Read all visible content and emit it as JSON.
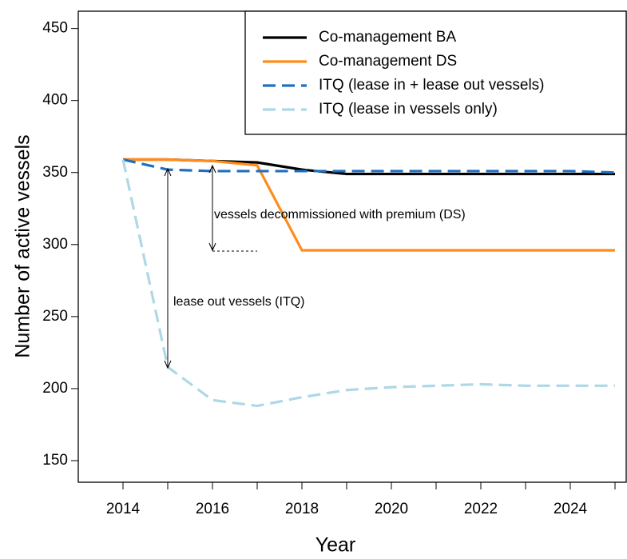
{
  "chart_data": {
    "type": "line",
    "x_label": "Year",
    "y_label": "Number of active vessels",
    "x": [
      2014,
      2015,
      2016,
      2017,
      2018,
      2019,
      2020,
      2021,
      2022,
      2023,
      2024,
      2025
    ],
    "series": [
      {
        "name": "Co-management BA",
        "color": "#000000",
        "dash": "solid",
        "values": [
          359,
          359,
          358,
          357,
          352,
          349,
          349,
          349,
          349,
          349,
          349,
          349
        ]
      },
      {
        "name": "Co-management DS",
        "color": "#ff8c1a",
        "dash": "solid",
        "values": [
          359,
          359,
          358,
          355,
          296,
          296,
          296,
          296,
          296,
          296,
          296,
          296
        ]
      },
      {
        "name": "ITQ (lease in + lease out vessels)",
        "color": "#1f6fc0",
        "dash": "dashed",
        "values": [
          359,
          352,
          351,
          351,
          351,
          351,
          351,
          351,
          351,
          351,
          351,
          350
        ]
      },
      {
        "name": "ITQ (lease in vessels only)",
        "color": "#add8e6",
        "dash": "dashed",
        "values": [
          359,
          215,
          192,
          188,
          194,
          199,
          201,
          202,
          203,
          202,
          202,
          202
        ]
      }
    ],
    "annotations": [
      "vessels decommissioned with premium (DS)",
      "lease out vessels (ITQ)"
    ],
    "xlim": [
      2013,
      2025.25
    ],
    "xticks": [
      2014,
      2016,
      2018,
      2020,
      2022,
      2024
    ],
    "xminorticks": [
      2015,
      2017,
      2019,
      2021,
      2023,
      2025
    ],
    "ylim": [
      135,
      462
    ],
    "yticks": [
      150,
      200,
      250,
      300,
      350,
      400,
      450
    ],
    "legend": "top-right",
    "grid": false
  }
}
